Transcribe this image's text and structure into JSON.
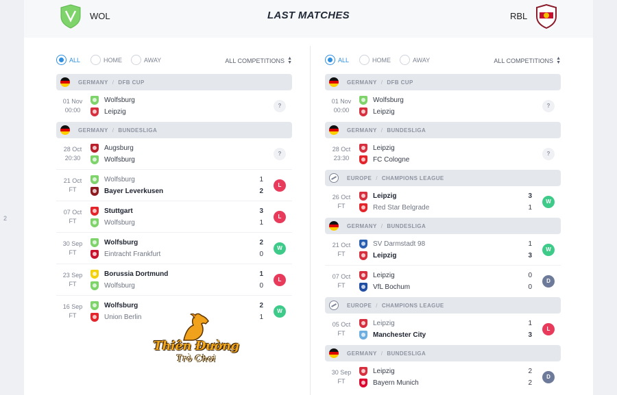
{
  "page": {
    "side_number": "2"
  },
  "header": {
    "title": "LAST MATCHES",
    "home_team": {
      "code": "WOL",
      "color": "#7ed36b",
      "icon": "wolfsburg-crest-icon"
    },
    "away_team": {
      "code": "RBL",
      "color": "#c8102e",
      "icon": "leipzig-crest-icon"
    }
  },
  "filters": {
    "all": "ALL",
    "home": "HOME",
    "away": "AWAY",
    "competitions": "ALL COMPETITIONS"
  },
  "colors": {
    "win": "#3ecb8a",
    "loss": "#e83a5a",
    "draw": "#6d7a99",
    "accent": "#2f8fe0"
  },
  "left_column": {
    "groups": [
      {
        "flag": "germany",
        "country": "GERMANY",
        "competition": "DFB CUP",
        "matches": [
          {
            "date": "01 Nov",
            "time": "00:00",
            "home": "Wolfsburg",
            "home_crest": "#7ed36b",
            "away": "Leipzig",
            "away_crest": "#d6303f",
            "home_score": "",
            "away_score": "",
            "result": "?",
            "result_type": "pending",
            "winner": ""
          }
        ]
      },
      {
        "flag": "germany",
        "country": "GERMANY",
        "competition": "BUNDESLIGA",
        "matches": [
          {
            "date": "28 Oct",
            "time": "20:30",
            "home": "Augsburg",
            "home_crest": "#b8202b",
            "away": "Wolfsburg",
            "away_crest": "#7ed36b",
            "home_score": "",
            "away_score": "",
            "result": "?",
            "result_type": "pending",
            "winner": ""
          },
          {
            "date": "21 Oct",
            "time": "FT",
            "home": "Wolfsburg",
            "home_crest": "#7ed36b",
            "away": "Bayer Leverkusen",
            "away_crest": "#8c1a1f",
            "home_score": "1",
            "away_score": "2",
            "result": "L",
            "result_type": "loss",
            "winner": "away"
          },
          {
            "date": "07 Oct",
            "time": "FT",
            "home": "Stuttgart",
            "home_crest": "#e3242b",
            "away": "Wolfsburg",
            "away_crest": "#7ed36b",
            "home_score": "3",
            "away_score": "1",
            "result": "L",
            "result_type": "loss",
            "winner": "home"
          },
          {
            "date": "30 Sep",
            "time": "FT",
            "home": "Wolfsburg",
            "home_crest": "#7ed36b",
            "away": "Eintracht Frankfurt",
            "away_crest": "#c8102e",
            "home_score": "2",
            "away_score": "0",
            "result": "W",
            "result_type": "win",
            "winner": "home"
          },
          {
            "date": "23 Sep",
            "time": "FT",
            "home": "Borussia Dortmund",
            "home_crest": "#f2d20d",
            "away": "Wolfsburg",
            "away_crest": "#7ed36b",
            "home_score": "1",
            "away_score": "0",
            "result": "L",
            "result_type": "loss",
            "winner": "home"
          },
          {
            "date": "16 Sep",
            "time": "FT",
            "home": "Wolfsburg",
            "home_crest": "#7ed36b",
            "away": "Union Berlin",
            "away_crest": "#e3242b",
            "home_score": "2",
            "away_score": "1",
            "result": "W",
            "result_type": "win",
            "winner": "home"
          }
        ]
      }
    ]
  },
  "right_column": {
    "groups": [
      {
        "flag": "germany",
        "country": "GERMANY",
        "competition": "DFB CUP",
        "matches": [
          {
            "date": "01 Nov",
            "time": "00:00",
            "home": "Wolfsburg",
            "home_crest": "#7ed36b",
            "away": "Leipzig",
            "away_crest": "#d6303f",
            "home_score": "",
            "away_score": "",
            "result": "?",
            "result_type": "pending",
            "winner": ""
          }
        ]
      },
      {
        "flag": "germany",
        "country": "GERMANY",
        "competition": "BUNDESLIGA",
        "matches": [
          {
            "date": "28 Oct",
            "time": "23:30",
            "home": "Leipzig",
            "home_crest": "#d6303f",
            "away": "FC Cologne",
            "away_crest": "#e3242b",
            "home_score": "",
            "away_score": "",
            "result": "?",
            "result_type": "pending",
            "winner": ""
          }
        ]
      },
      {
        "flag": "europe",
        "country": "EUROPE",
        "competition": "CHAMPIONS LEAGUE",
        "matches": [
          {
            "date": "26 Oct",
            "time": "FT",
            "home": "Leipzig",
            "home_crest": "#d6303f",
            "away": "Red Star Belgrade",
            "away_crest": "#e3242b",
            "home_score": "3",
            "away_score": "1",
            "result": "W",
            "result_type": "win",
            "winner": "home"
          }
        ]
      },
      {
        "flag": "germany",
        "country": "GERMANY",
        "competition": "BUNDESLIGA",
        "matches": [
          {
            "date": "21 Oct",
            "time": "FT",
            "home": "SV Darmstadt 98",
            "home_crest": "#2a5fb0",
            "away": "Leipzig",
            "away_crest": "#d6303f",
            "home_score": "1",
            "away_score": "3",
            "result": "W",
            "result_type": "win",
            "winner": "away"
          },
          {
            "date": "07 Oct",
            "time": "FT",
            "home": "Leipzig",
            "home_crest": "#d6303f",
            "away": "VfL Bochum",
            "away_crest": "#1f4ea3",
            "home_score": "0",
            "away_score": "0",
            "result": "D",
            "result_type": "draw",
            "winner": ""
          }
        ]
      },
      {
        "flag": "europe",
        "country": "EUROPE",
        "competition": "CHAMPIONS LEAGUE",
        "matches": [
          {
            "date": "05 Oct",
            "time": "FT",
            "home": "Leipzig",
            "home_crest": "#d6303f",
            "away": "Manchester City",
            "away_crest": "#6caee0",
            "home_score": "1",
            "away_score": "3",
            "result": "L",
            "result_type": "loss",
            "winner": "away"
          }
        ]
      },
      {
        "flag": "germany",
        "country": "GERMANY",
        "competition": "BUNDESLIGA",
        "matches": [
          {
            "date": "30 Sep",
            "time": "FT",
            "home": "Leipzig",
            "home_crest": "#d6303f",
            "away": "Bayern Munich",
            "away_crest": "#dc052d",
            "home_score": "2",
            "away_score": "2",
            "result": "D",
            "result_type": "draw",
            "winner": ""
          }
        ]
      }
    ]
  },
  "watermark": {
    "line1": "Thiên Đường",
    "line2": "Trò Chơi",
    "icon": "horse-logo-icon"
  }
}
